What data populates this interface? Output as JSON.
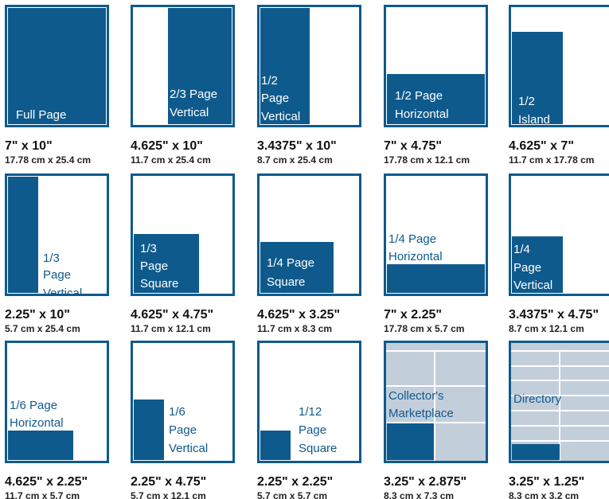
{
  "ads": [
    {
      "label": [
        "Full Page"
      ],
      "size": "7\" x 10\"",
      "metric": "17.78 cm x 25.4 cm"
    },
    {
      "label": [
        "2/3 Page",
        "Vertical"
      ],
      "size": "4.625\" x 10\"",
      "metric": "11.7 cm x 25.4 cm"
    },
    {
      "label": [
        "1/2",
        "Page",
        "Vertical"
      ],
      "size": "3.4375\" x 10\"",
      "metric": "8.7 cm x 25.4 cm"
    },
    {
      "label": [
        "1/2 Page",
        "Horizontal"
      ],
      "size": "7\" x 4.75\"",
      "metric": "17.78 cm x 12.1 cm"
    },
    {
      "label": [
        "1/2",
        "Island"
      ],
      "size": "4.625\" x 7\"",
      "metric": "11.7 cm x 17.78 cm"
    },
    {
      "label": [
        "1/3",
        "Page",
        "Vertical"
      ],
      "size": "2.25\" x 10\"",
      "metric": "5.7 cm x 25.4 cm"
    },
    {
      "label": [
        "1/3",
        "Page",
        "Square"
      ],
      "size": "4.625\" x 4.75\"",
      "metric": "11.7 cm x 12.1 cm"
    },
    {
      "label": [
        "1/4 Page",
        "Square"
      ],
      "size": "4.625\" x 3.25\"",
      "metric": "11.7 cm x 8.3 cm"
    },
    {
      "label": [
        "1/4 Page",
        "Horizontal"
      ],
      "size": "7\" x 2.25\"",
      "metric": "17.78 cm x 5.7 cm"
    },
    {
      "label": [
        "1/4",
        "Page",
        "Vertical"
      ],
      "size": "3.4375\" x 4.75\"",
      "metric": "8.7 cm x 12.1 cm"
    },
    {
      "label": [
        "1/6 Page",
        "Horizontal"
      ],
      "size": "4.625\" x 2.25\"",
      "metric": "11.7 cm x 5.7 cm"
    },
    {
      "label": [
        "1/6",
        "Page",
        "Vertical"
      ],
      "size": "2.25\" x 4.75\"",
      "metric": "5.7 cm x 12.1 cm"
    },
    {
      "label": [
        "1/12",
        "Page",
        "Square"
      ],
      "size": "2.25\" x 2.25\"",
      "metric": "5.7 cm x 5.7 cm"
    },
    {
      "label": [
        "Collector's",
        "Marketplace"
      ],
      "size": "3.25\" x 2.875\"",
      "metric": "8.3 cm x 7.3 cm"
    },
    {
      "label": [
        "Directory"
      ],
      "size": "3.25\" x 1.25\"",
      "metric": "8.3 cm x 3.2 cm"
    }
  ]
}
